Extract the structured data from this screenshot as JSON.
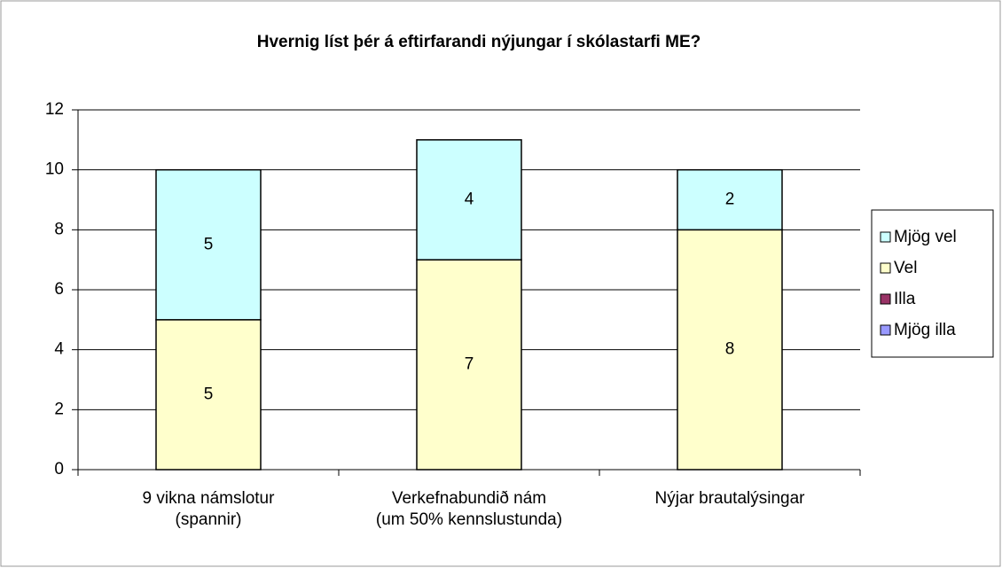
{
  "chart_data": {
    "type": "stacked_bar",
    "title": "Hvernig líst þér á eftirfarandi nýjungar í skólastarfi ME?",
    "categories": [
      [
        "9 vikna námslotur",
        "(spannir)"
      ],
      [
        "Verkefnabundið nám",
        "(um 50% kennslustunda)"
      ],
      [
        "Nýjar brautalýsingar"
      ]
    ],
    "series": [
      {
        "name": "Mjög illa",
        "color": "#9999ff",
        "values": [
          0,
          0,
          0
        ]
      },
      {
        "name": "Illa",
        "color": "#993366",
        "values": [
          0,
          0,
          0
        ]
      },
      {
        "name": "Vel",
        "color": "#ffffcc",
        "values": [
          5,
          7,
          8
        ]
      },
      {
        "name": "Mjög vel",
        "color": "#ccffff",
        "values": [
          5,
          4,
          2
        ]
      }
    ],
    "ylim": [
      0,
      12
    ],
    "yticks": [
      0,
      2,
      4,
      6,
      8,
      10,
      12
    ],
    "grid": true,
    "legend": "right"
  }
}
